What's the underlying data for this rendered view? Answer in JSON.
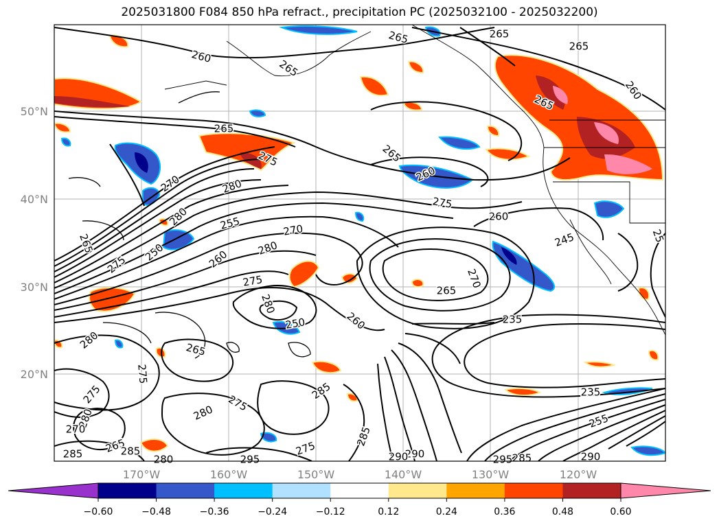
{
  "title": "2025031800 F084 850 hPa refract., precipitation PC (2025032100 - 2025032200)",
  "map": {
    "lon_labels": [
      "170°W",
      "160°W",
      "150°W",
      "140°W",
      "130°W",
      "120°W"
    ],
    "lat_labels": [
      "50°N",
      "40°N",
      "30°N",
      "20°N"
    ],
    "contour_labels": [
      {
        "text": "265"
      },
      {
        "text": "265"
      },
      {
        "text": "265"
      },
      {
        "text": "260"
      },
      {
        "text": "265"
      },
      {
        "text": "260"
      },
      {
        "text": "265"
      },
      {
        "text": "265"
      },
      {
        "text": "275"
      },
      {
        "text": "265"
      },
      {
        "text": "260"
      },
      {
        "text": "270"
      },
      {
        "text": "280"
      },
      {
        "text": "280"
      },
      {
        "text": "275"
      },
      {
        "text": "255"
      },
      {
        "text": "270"
      },
      {
        "text": "260"
      },
      {
        "text": "265"
      },
      {
        "text": "250"
      },
      {
        "text": "280"
      },
      {
        "text": "260"
      },
      {
        "text": "245"
      },
      {
        "text": "25"
      },
      {
        "text": "275"
      },
      {
        "text": "275"
      },
      {
        "text": "270"
      },
      {
        "text": "265"
      },
      {
        "text": "235"
      },
      {
        "text": "250"
      },
      {
        "text": "260"
      },
      {
        "text": "280"
      },
      {
        "text": "265"
      },
      {
        "text": "280"
      },
      {
        "text": "275"
      },
      {
        "text": "285"
      },
      {
        "text": "235"
      },
      {
        "text": "275"
      },
      {
        "text": "280"
      },
      {
        "text": "270"
      },
      {
        "text": "265"
      },
      {
        "text": "275"
      },
      {
        "text": "280"
      },
      {
        "text": "285"
      },
      {
        "text": "275"
      },
      {
        "text": "255"
      },
      {
        "text": "290"
      },
      {
        "text": "295"
      },
      {
        "text": "290"
      },
      {
        "text": "285"
      },
      {
        "text": "290"
      },
      {
        "text": "285"
      },
      {
        "text": "280"
      },
      {
        "text": "295"
      },
      {
        "text": "285"
      }
    ]
  },
  "colorbar": {
    "ticks": [
      "−0.60",
      "−0.48",
      "−0.36",
      "−0.24",
      "−0.12",
      "0.12",
      "0.24",
      "0.36",
      "0.48",
      "0.60"
    ],
    "colors": [
      "#9932cc",
      "#00008b",
      "#3457c9",
      "#00bfff",
      "#b0e2ff",
      "#ffffff",
      "#ffe98c",
      "#ffa500",
      "#ff4500",
      "#b22222",
      "#ff88aa"
    ]
  }
}
